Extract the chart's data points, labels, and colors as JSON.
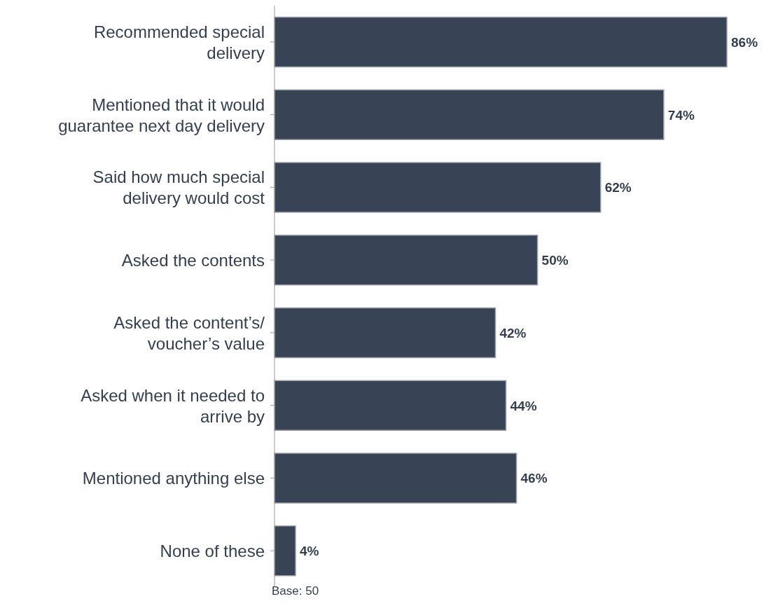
{
  "chart_data": {
    "type": "bar",
    "orientation": "horizontal",
    "categories": [
      "Recommended special delivery",
      "Mentioned that it would guarantee next day delivery",
      "Said how much special delivery would cost",
      "Asked the contents",
      "Asked the content’s/ voucher’s value",
      "Asked when it needed to arrive by",
      "Mentioned anything else",
      "None of these"
    ],
    "values": [
      86,
      74,
      62,
      50,
      42,
      44,
      46,
      4
    ],
    "value_labels": [
      "86%",
      "74%",
      "62%",
      "50%",
      "42%",
      "44%",
      "46%",
      "4%"
    ],
    "color": "#394356",
    "annotations": [
      "Base: 50"
    ]
  }
}
